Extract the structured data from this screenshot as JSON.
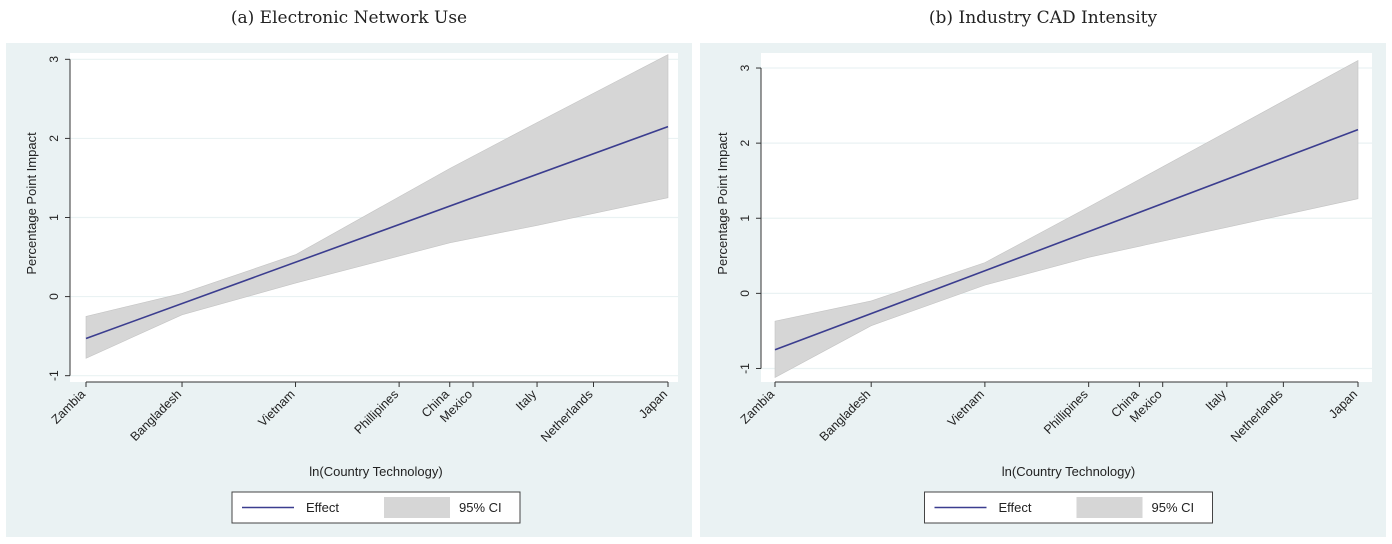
{
  "chart_data": [
    {
      "type": "line",
      "title": "(a) Electronic Network Use",
      "xlabel": "ln(Country Technology)",
      "ylabel": "Percentage Point Impact",
      "categories": [
        "Zambia",
        "Bangladesh",
        "Vietnam",
        "Phillipines",
        "China",
        "Mexico",
        "Italy",
        "Netherlands",
        "Japan"
      ],
      "x": [
        0.0,
        0.165,
        0.36,
        0.538,
        0.625,
        0.665,
        0.775,
        0.872,
        1.0
      ],
      "ylim": [
        -1.0,
        3.0
      ],
      "yticks": [
        -1,
        0,
        1,
        2,
        3
      ],
      "series": [
        {
          "name": "Effect",
          "x": [
            0.0,
            1.0
          ],
          "values": [
            -0.53,
            2.15
          ]
        },
        {
          "name": "95% CI",
          "x": [
            0.0,
            0.165,
            0.36,
            0.625,
            0.775,
            1.0
          ],
          "upper": [
            -0.25,
            0.04,
            0.53,
            1.62,
            2.2,
            3.06
          ],
          "lower": [
            -0.78,
            -0.23,
            0.17,
            0.68,
            0.9,
            1.25
          ]
        }
      ],
      "legend": {
        "position": "bottom",
        "items": [
          "Effect",
          "95% CI"
        ]
      },
      "grid": true
    },
    {
      "type": "line",
      "title": "(b) Industry CAD Intensity",
      "xlabel": "ln(Country Technology)",
      "ylabel": "Percentage Point Impact",
      "categories": [
        "Zambia",
        "Bangladesh",
        "Vietnam",
        "Phillipines",
        "China",
        "Mexico",
        "Italy",
        "Netherlands",
        "Japan"
      ],
      "x": [
        0.0,
        0.165,
        0.36,
        0.538,
        0.625,
        0.665,
        0.775,
        0.872,
        1.0
      ],
      "ylim": [
        -1.2,
        3.2
      ],
      "yticks": [
        -1,
        0,
        1,
        2,
        3
      ],
      "series": [
        {
          "name": "Effect",
          "x": [
            0.0,
            0.36,
            1.0
          ],
          "values": [
            -0.75,
            0.3,
            2.18
          ]
        },
        {
          "name": "95% CI",
          "x": [
            0.0,
            0.165,
            0.36,
            0.538,
            0.775,
            1.0
          ],
          "upper": [
            -0.37,
            -0.1,
            0.41,
            1.15,
            2.15,
            3.1
          ],
          "lower": [
            -1.12,
            -0.43,
            0.11,
            0.48,
            0.88,
            1.26
          ]
        }
      ],
      "legend": {
        "position": "bottom",
        "items": [
          "Effect",
          "95% CI"
        ]
      },
      "grid": true
    }
  ],
  "colors": {
    "line": "#3b3d8f",
    "band": "#d6d6d6",
    "panel_bg": "#eaf2f3",
    "plot_bg": "#ffffff"
  }
}
